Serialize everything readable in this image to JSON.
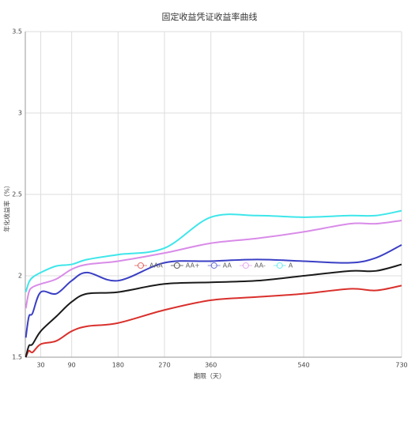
{
  "chart_data": {
    "type": "line",
    "title": "固定收益凭证收益率曲线",
    "xlabel": "期限（天）",
    "ylabel": "年化收益率（%）",
    "x": [
      1,
      7,
      14,
      30,
      60,
      90,
      120,
      180,
      270,
      360,
      450,
      540,
      630,
      680,
      730
    ],
    "series": [
      {
        "name": "AAA",
        "color": "#d9302c",
        "values": [
          1.5,
          1.54,
          1.53,
          1.58,
          1.6,
          1.66,
          1.69,
          1.71,
          1.79,
          1.85,
          1.87,
          1.89,
          1.92,
          1.91,
          1.94
        ]
      },
      {
        "name": "AA+",
        "color": "#1a1a1a",
        "values": [
          1.5,
          1.57,
          1.58,
          1.66,
          1.75,
          1.84,
          1.89,
          1.9,
          1.95,
          1.96,
          1.97,
          2.0,
          2.03,
          2.03,
          2.07
        ]
      },
      {
        "name": "AA",
        "color": "#3a3fc4",
        "values": [
          1.62,
          1.75,
          1.77,
          1.9,
          1.89,
          1.97,
          2.02,
          1.97,
          2.08,
          2.09,
          2.1,
          2.09,
          2.08,
          2.11,
          2.19
        ]
      },
      {
        "name": "AA-",
        "color": "#d98be8",
        "values": [
          1.8,
          1.9,
          1.93,
          1.95,
          1.98,
          2.04,
          2.07,
          2.09,
          2.14,
          2.2,
          2.23,
          2.27,
          2.32,
          2.32,
          2.34
        ]
      },
      {
        "name": "A",
        "color": "#3ee6ea",
        "values": [
          1.9,
          1.96,
          1.99,
          2.02,
          2.06,
          2.07,
          2.1,
          2.13,
          2.17,
          2.36,
          2.37,
          2.36,
          2.37,
          2.37,
          2.4
        ]
      }
    ],
    "xlim": [
      0,
      730
    ],
    "xticks": [
      30,
      90,
      180,
      270,
      360,
      540,
      730
    ],
    "ylim": [
      1.5,
      3.5
    ],
    "yticks": [
      1.5,
      2,
      2.5,
      3,
      3.5
    ],
    "grid": true
  }
}
